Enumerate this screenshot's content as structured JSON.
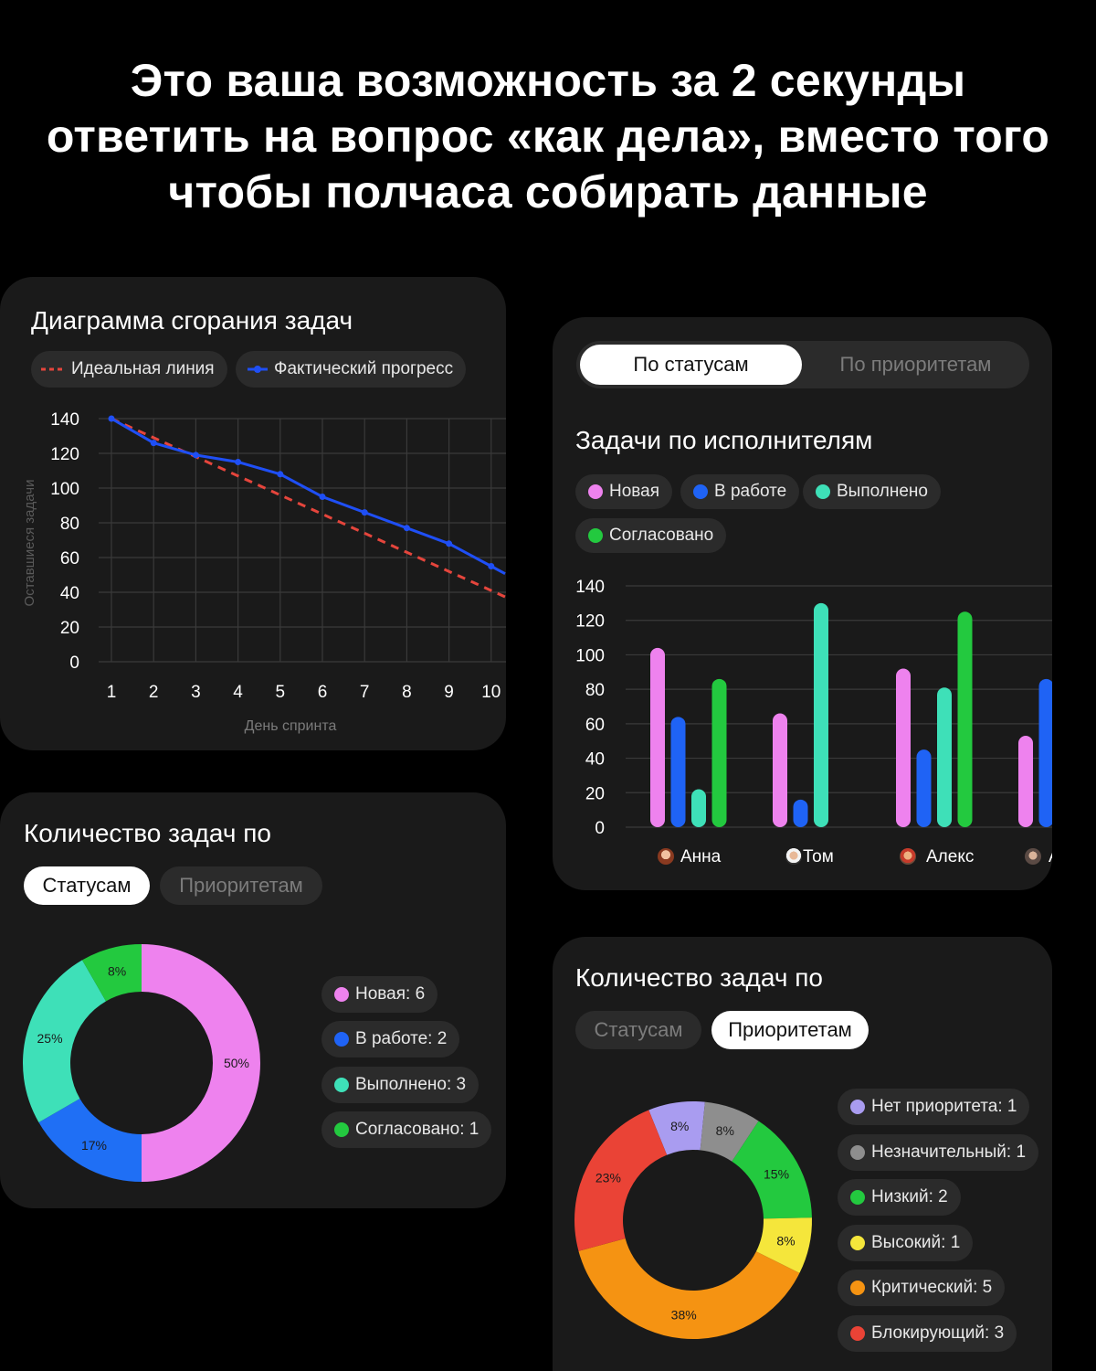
{
  "headline": [
    "Это ваша возможность за 2 секунды",
    "ответить на вопрос «как дела», вместо того",
    "чтобы полчаса собирать данные"
  ],
  "burndown": {
    "title": "Диаграмма сгорания задач",
    "legend": [
      {
        "label": "Идеальная линия",
        "color": "#e5453c",
        "style": "dashed"
      },
      {
        "label": "Фактический прогресс",
        "color": "#1f4ff5",
        "style": "solid-marker"
      }
    ],
    "chart_data": {
      "type": "line",
      "title": "Диаграмма сгорания задач",
      "xlabel": "День спринта",
      "ylabel": "Оставшиеся задачи",
      "x": [
        1,
        2,
        3,
        4,
        5,
        6,
        7,
        8,
        9,
        10
      ],
      "ylim": [
        0,
        140
      ],
      "yticks": [
        0,
        20,
        40,
        60,
        80,
        100,
        120,
        140
      ],
      "grid": true,
      "series": [
        {
          "name": "Идеальная линия",
          "color": "#e5453c",
          "values": [
            140,
            129,
            118,
            107,
            96,
            85,
            74,
            63,
            52,
            41
          ]
        },
        {
          "name": "Фактический прогресс",
          "color": "#1f4ff5",
          "values": [
            140,
            126,
            119,
            115,
            108,
            95,
            86,
            77,
            68,
            55
          ]
        }
      ]
    }
  },
  "assignees": {
    "segments": {
      "active": "По статусам",
      "inactive": "По приоритетам"
    },
    "title": "Задачи по исполнителям",
    "legend": [
      {
        "label": "Новая",
        "color": "#ee82ee"
      },
      {
        "label": "В работе",
        "color": "#1f63f5"
      },
      {
        "label": "Выполнено",
        "color": "#3ee0b8"
      },
      {
        "label": "Согласовано",
        "color": "#23c93f"
      }
    ],
    "chart_data": {
      "type": "bar",
      "categories": [
        "Анна",
        "Том",
        "Алекс",
        "А"
      ],
      "ylim": [
        0,
        140
      ],
      "yticks": [
        0,
        20,
        40,
        60,
        80,
        100,
        120,
        140
      ],
      "grid": true,
      "series": [
        {
          "name": "Новая",
          "color": "#ee82ee",
          "values": [
            104,
            66,
            92,
            53
          ]
        },
        {
          "name": "В работе",
          "color": "#1f63f5",
          "values": [
            64,
            16,
            45,
            86
          ]
        },
        {
          "name": "Выполнено",
          "color": "#3ee0b8",
          "values": [
            22,
            130,
            81,
            null
          ]
        },
        {
          "name": "Согласовано",
          "color": "#23c93f",
          "values": [
            86,
            null,
            125,
            null
          ]
        }
      ]
    }
  },
  "status_count": {
    "title": "Количество задач по",
    "tabs": {
      "active": "Статусам",
      "inactive": "Приоритетам"
    },
    "legend": [
      {
        "label": "Новая: 6",
        "color": "#ee82ee"
      },
      {
        "label": "В работе: 2",
        "color": "#1f63f5"
      },
      {
        "label": "Выполнено: 3",
        "color": "#3ee0b8"
      },
      {
        "label": "Согласовано: 1",
        "color": "#23c93f"
      }
    ],
    "chart_data": {
      "type": "pie",
      "labels": [
        "Новая",
        "В работе",
        "Выполнено",
        "Согласовано"
      ],
      "values": [
        6,
        2,
        3,
        1
      ],
      "percent_labels": [
        "50%",
        "17%",
        "25%",
        "8%"
      ],
      "colors": [
        "#ee82ee",
        "#1f6ff5",
        "#3ee0b8",
        "#23c93f"
      ],
      "donut": true
    }
  },
  "priority_count": {
    "title": "Количество задач по",
    "tabs": {
      "inactive": "Статусам",
      "active": "Приоритетам"
    },
    "legend": [
      {
        "label": "Нет приоритета: 1",
        "color": "#a99cf0"
      },
      {
        "label": "Незначительный: 1",
        "color": "#8e8e8e"
      },
      {
        "label": "Низкий: 2",
        "color": "#23c93f"
      },
      {
        "label": "Высокий: 1",
        "color": "#f5e63b"
      },
      {
        "label": "Критический: 5",
        "color": "#f59312"
      },
      {
        "label": "Блокирующий: 3",
        "color": "#ea4336"
      }
    ],
    "chart_data": {
      "type": "pie",
      "labels": [
        "Нет приоритета",
        "Незначительный",
        "Низкий",
        "Высокий",
        "Критический",
        "Блокирующий"
      ],
      "values": [
        1,
        1,
        2,
        1,
        5,
        3
      ],
      "percent_labels": [
        "8%",
        "8%",
        "15%",
        "8%",
        "38%",
        "23%"
      ],
      "colors": [
        "#a99cf0",
        "#8e8e8e",
        "#23c93f",
        "#f5e63b",
        "#f59312",
        "#ea4336"
      ],
      "donut": true
    }
  }
}
